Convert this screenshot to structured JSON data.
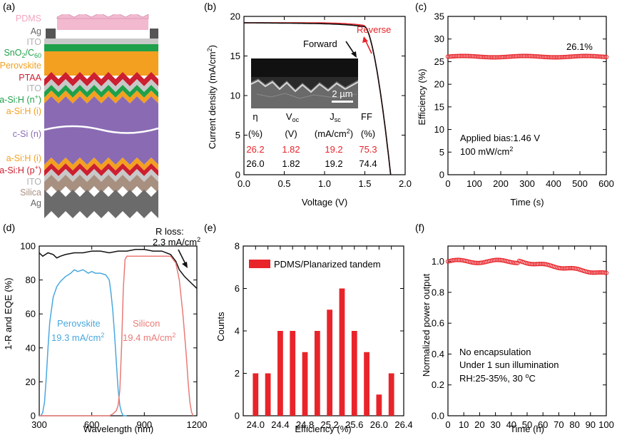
{
  "panel_labels": [
    "(a)",
    "(b)",
    "(c)",
    "(d)",
    "(e)",
    "(f)"
  ],
  "colors": {
    "red": "#e8242a",
    "black": "#111111",
    "blue": "#4aa8de",
    "salmon": "#e97b77",
    "perovskite": "#f3a021",
    "silicon": "#8a6bb3",
    "pdms": "#f2b9cf",
    "ito": "#c8c8c8",
    "ag": "#6b6b6b",
    "green": "#1fa04a",
    "ptaa": "#cc1f30",
    "silica": "#a89080"
  },
  "panel_a": {
    "layers": [
      "PDMS",
      "Ag",
      "ITO",
      "SnO2/C60",
      "Perovskite",
      "PTAA",
      "ITO",
      "a-Si:H (n+)",
      "a-Si:H (i)",
      "c-Si (n)",
      "a-Si:H (i)",
      "a-Si:H (p+)",
      "ITO",
      "Silica",
      "Ag"
    ],
    "sno2_main": "SnO",
    "sno2_sub": "2",
    "sno2_c": "/C",
    "sno2_c_sub": "60",
    "asi_n_main": "a-Si:H (n",
    "asi_n_sup": "+",
    "asi_n_end": ")",
    "asi_p_main": "a-Si:H (p",
    "asi_p_sup": "+",
    "asi_p_end": ")"
  },
  "chart_data": [
    {
      "id": "b",
      "type": "line",
      "title": "",
      "xlabel": "Voltage (V)",
      "ylabel": "Current density (mA/cm2)",
      "ylabel_main": "Current density (mA/cm",
      "ylabel_sup": "2",
      "ylabel_end": ")",
      "xlim": [
        0,
        2.0
      ],
      "ylim": [
        0,
        20
      ],
      "xticks": [
        "0.0",
        "0.5",
        "1.0",
        "1.5",
        "2.0"
      ],
      "yticks": [
        "0",
        "5",
        "10",
        "15",
        "20"
      ],
      "series": [
        {
          "name": "Reverse",
          "color": "#e8242a",
          "jsc": 19.2,
          "voc": 1.82
        },
        {
          "name": "Forward",
          "color": "#111111",
          "jsc": 19.2,
          "voc": 1.82
        }
      ],
      "annotations": {
        "reverse": "Reverse",
        "forward": "Forward",
        "scale_bar": "2 µm"
      },
      "table": {
        "headers": [
          "η",
          "V",
          "J",
          "FF"
        ],
        "header_subs": [
          "",
          "oc",
          "sc",
          ""
        ],
        "units": [
          "(%)",
          "(V)",
          "(mA/cm2)",
          "(%)"
        ],
        "unit_jsc_main": "(mA/cm",
        "unit_jsc_sup": "2",
        "unit_jsc_end": ")",
        "rows": [
          [
            "26.2",
            "1.82",
            "19.2",
            "75.3"
          ],
          [
            "26.0",
            "1.82",
            "19.2",
            "74.4"
          ]
        ]
      }
    },
    {
      "id": "c",
      "type": "scatter",
      "xlabel": "Time (s)",
      "ylabel": "Efficiency (%)",
      "xlim": [
        0,
        600
      ],
      "ylim": [
        0,
        35
      ],
      "xticks": [
        "0",
        "100",
        "200",
        "300",
        "400",
        "500",
        "600"
      ],
      "yticks": [
        "0",
        "5",
        "10",
        "15",
        "20",
        "25",
        "30",
        "35"
      ],
      "value": 26.1,
      "value_label": "26.1%",
      "notes": [
        "Applied bias:1.46 V",
        "100 mW/cm2"
      ],
      "note2_main": "100 mW/cm",
      "note2_sup": "2"
    },
    {
      "id": "d",
      "type": "line",
      "xlabel": "Wavelength (nm)",
      "ylabel": "1-R and EQE (%)",
      "xlim": [
        300,
        1200
      ],
      "ylim": [
        0,
        100
      ],
      "xticks": [
        "300",
        "600",
        "900",
        "1200"
      ],
      "yticks": [
        "0",
        "20",
        "40",
        "60",
        "80",
        "100"
      ],
      "series": [
        {
          "name": "1-R",
          "color": "#111111",
          "x": [
            300,
            320,
            350,
            380,
            400,
            420,
            450,
            500,
            550,
            600,
            650,
            700,
            750,
            800,
            850,
            900,
            950,
            1000,
            1050,
            1080,
            1100,
            1130,
            1150,
            1170,
            1190,
            1200
          ],
          "y": [
            96,
            94,
            96,
            95,
            93,
            94,
            95,
            96,
            96,
            97,
            97,
            96,
            97,
            97,
            98,
            98,
            97,
            97,
            95,
            91,
            86,
            82,
            80,
            78,
            76,
            75
          ]
        },
        {
          "name": "Perovskite",
          "color": "#4aa8de",
          "x": [
            300,
            310,
            320,
            330,
            340,
            350,
            360,
            380,
            400,
            420,
            450,
            480,
            500,
            520,
            550,
            580,
            600,
            620,
            650,
            680,
            700,
            710,
            720,
            730,
            740,
            750,
            760,
            770,
            780,
            800
          ],
          "y": [
            0,
            0,
            2,
            8,
            22,
            40,
            55,
            70,
            76,
            79,
            82,
            84,
            86,
            85,
            86,
            84,
            85,
            84,
            84,
            83,
            80,
            72,
            62,
            48,
            32,
            16,
            6,
            2,
            0,
            0
          ]
        },
        {
          "name": "Silicon",
          "color": "#e97b77",
          "x": [
            300,
            400,
            500,
            600,
            650,
            700,
            720,
            740,
            750,
            760,
            770,
            780,
            790,
            800,
            820,
            850,
            900,
            950,
            1000,
            1050,
            1080,
            1100,
            1120,
            1140,
            1150,
            1160,
            1170,
            1180
          ],
          "y": [
            0,
            0,
            0,
            0,
            0,
            0,
            1,
            3,
            6,
            15,
            40,
            75,
            92,
            94,
            94,
            94,
            94,
            94,
            94,
            94,
            90,
            80,
            60,
            35,
            20,
            8,
            2,
            0
          ]
        }
      ],
      "labels": {
        "perovskite": "Perovskite",
        "perovskite_jsc": "19.3 mA/cm",
        "silicon": "Silicon",
        "silicon_jsc": "19.4 mA/cm",
        "sup2": "2",
        "rloss_title": "R loss:",
        "rloss_value": "2.3 mA/cm"
      }
    },
    {
      "id": "e",
      "type": "bar",
      "xlabel": "Efficiency (%)",
      "ylabel": "Counts",
      "xlim": [
        23.8,
        26.4
      ],
      "ylim": [
        0,
        8
      ],
      "xticks": [
        "24.0",
        "24.2",
        "24.4",
        "24.6",
        "24.8",
        "25.0",
        "25.2",
        "25.4",
        "25.6",
        "25.8",
        "26.0",
        "26.2",
        "26.4"
      ],
      "xticks_labeled": [
        "24.0",
        "24.4",
        "24.8",
        "25.2",
        "25.6",
        "26.0",
        "26.4"
      ],
      "yticks": [
        "0",
        "2",
        "4",
        "6",
        "8"
      ],
      "categories": [
        24.0,
        24.1,
        24.2,
        24.3,
        24.4,
        24.5,
        24.6,
        24.7,
        24.8,
        24.9,
        25.0,
        25.1,
        25.2,
        25.3,
        25.4,
        25.5,
        25.6,
        25.7,
        25.8,
        25.9,
        26.0,
        26.1,
        26.2
      ],
      "values": [
        2,
        0,
        2,
        0,
        4,
        0,
        4,
        0,
        3,
        0,
        4,
        0,
        5,
        0,
        6,
        0,
        4,
        0,
        3,
        0,
        1,
        0,
        2
      ],
      "legend": "PDMS/Planarized tandem",
      "color": "#e8242a"
    },
    {
      "id": "f",
      "type": "scatter",
      "xlabel": "Time (h)",
      "ylabel": "Normalized power output",
      "xlim": [
        0,
        100
      ],
      "ylim": [
        0,
        1.1
      ],
      "xticks": [
        "0",
        "10",
        "20",
        "30",
        "40",
        "50",
        "60",
        "70",
        "80",
        "90",
        "100"
      ],
      "yticks": [
        "0.0",
        "0.2",
        "0.4",
        "0.6",
        "0.8",
        "1.0"
      ],
      "start_value": 1.0,
      "end_value": 0.92,
      "notes": [
        "No encapsulation",
        "Under 1 sun illumination",
        "RH:25-35%, 30 oC"
      ],
      "note3_main": "RH:25-35%, 30 ",
      "note3_sup": "o",
      "note3_end": "C"
    }
  ]
}
